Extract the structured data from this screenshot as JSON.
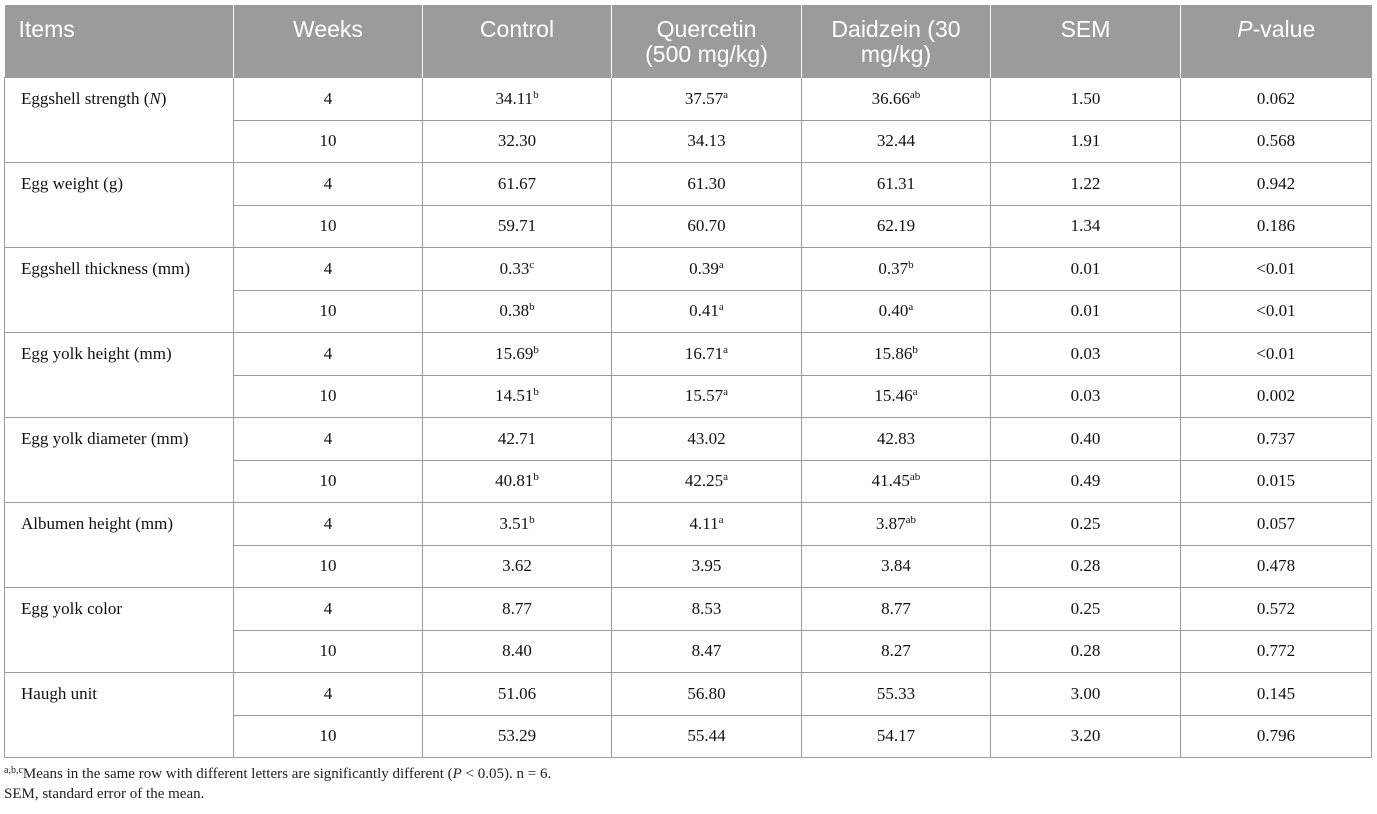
{
  "table": {
    "headers": {
      "items": "Items",
      "weeks": "Weeks",
      "control": "Control",
      "quercetin_line1": "Quercetin",
      "quercetin_line2": "(500 mg/kg)",
      "daidzein_line1": "Daidzein (30",
      "daidzein_line2": "mg/kg)",
      "sem": "SEM",
      "pvalue_italic": "P",
      "pvalue_rest": "-value"
    },
    "groups": [
      {
        "label": "Eggshell strength (",
        "label_italic": "N",
        "label_end": ")",
        "rows": [
          {
            "weeks": "4",
            "control": "34.11",
            "control_sup": "b",
            "quercetin": "37.57",
            "quercetin_sup": "a",
            "daidzein": "36.66",
            "daidzein_sup": "ab",
            "sem": "1.50",
            "p": "0.062"
          },
          {
            "weeks": "10",
            "control": "32.30",
            "control_sup": "",
            "quercetin": "34.13",
            "quercetin_sup": "",
            "daidzein": "32.44",
            "daidzein_sup": "",
            "sem": "1.91",
            "p": "0.568"
          }
        ]
      },
      {
        "label": "Egg weight (g)",
        "rows": [
          {
            "weeks": "4",
            "control": "61.67",
            "control_sup": "",
            "quercetin": "61.30",
            "quercetin_sup": "",
            "daidzein": "61.31",
            "daidzein_sup": "",
            "sem": "1.22",
            "p": "0.942"
          },
          {
            "weeks": "10",
            "control": "59.71",
            "control_sup": "",
            "quercetin": "60.70",
            "quercetin_sup": "",
            "daidzein": "62.19",
            "daidzein_sup": "",
            "sem": "1.34",
            "p": "0.186"
          }
        ]
      },
      {
        "label": "Eggshell thickness (mm)",
        "rows": [
          {
            "weeks": "4",
            "control": "0.33",
            "control_sup": "c",
            "quercetin": "0.39",
            "quercetin_sup": "a",
            "daidzein": "0.37",
            "daidzein_sup": "b",
            "sem": "0.01",
            "p": "<0.01"
          },
          {
            "weeks": "10",
            "control": "0.38",
            "control_sup": "b",
            "quercetin": "0.41",
            "quercetin_sup": "a",
            "daidzein": "0.40",
            "daidzein_sup": "a",
            "sem": "0.01",
            "p": "<0.01"
          }
        ]
      },
      {
        "label": "Egg yolk height (mm)",
        "rows": [
          {
            "weeks": "4",
            "control": "15.69",
            "control_sup": "b",
            "quercetin": "16.71",
            "quercetin_sup": "a",
            "daidzein": "15.86",
            "daidzein_sup": "b",
            "sem": "0.03",
            "p": "<0.01"
          },
          {
            "weeks": "10",
            "control": "14.51",
            "control_sup": "b",
            "quercetin": "15.57",
            "quercetin_sup": "a",
            "daidzein": "15.46",
            "daidzein_sup": "a",
            "sem": "0.03",
            "p": "0.002"
          }
        ]
      },
      {
        "label": "Egg yolk diameter (mm)",
        "rows": [
          {
            "weeks": "4",
            "control": "42.71",
            "control_sup": "",
            "quercetin": "43.02",
            "quercetin_sup": "",
            "daidzein": "42.83",
            "daidzein_sup": "",
            "sem": "0.40",
            "p": "0.737"
          },
          {
            "weeks": "10",
            "control": "40.81",
            "control_sup": "b",
            "quercetin": "42.25",
            "quercetin_sup": "a",
            "daidzein": "41.45",
            "daidzein_sup": "ab",
            "sem": "0.49",
            "p": "0.015"
          }
        ]
      },
      {
        "label": "Albumen height (mm)",
        "rows": [
          {
            "weeks": "4",
            "control": "3.51",
            "control_sup": "b",
            "quercetin": "4.11",
            "quercetin_sup": "a",
            "daidzein": "3.87",
            "daidzein_sup": "ab",
            "sem": "0.25",
            "p": "0.057"
          },
          {
            "weeks": "10",
            "control": "3.62",
            "control_sup": "",
            "quercetin": "3.95",
            "quercetin_sup": "",
            "daidzein": "3.84",
            "daidzein_sup": "",
            "sem": "0.28",
            "p": "0.478"
          }
        ]
      },
      {
        "label": "Egg yolk color",
        "rows": [
          {
            "weeks": "4",
            "control": "8.77",
            "control_sup": "",
            "quercetin": "8.53",
            "quercetin_sup": "",
            "daidzein": "8.77",
            "daidzein_sup": "",
            "sem": "0.25",
            "p": "0.572"
          },
          {
            "weeks": "10",
            "control": "8.40",
            "control_sup": "",
            "quercetin": "8.47",
            "quercetin_sup": "",
            "daidzein": "8.27",
            "daidzein_sup": "",
            "sem": "0.28",
            "p": "0.772"
          }
        ]
      },
      {
        "label": "Haugh unit",
        "rows": [
          {
            "weeks": "4",
            "control": "51.06",
            "control_sup": "",
            "quercetin": "56.80",
            "quercetin_sup": "",
            "daidzein": "55.33",
            "daidzein_sup": "",
            "sem": "3.00",
            "p": "0.145"
          },
          {
            "weeks": "10",
            "control": "53.29",
            "control_sup": "",
            "quercetin": "55.44",
            "quercetin_sup": "",
            "daidzein": "54.17",
            "daidzein_sup": "",
            "sem": "3.20",
            "p": "0.796"
          }
        ]
      }
    ]
  },
  "footnotes": {
    "sup": "a,b,c",
    "line1_a": "Means in the same row with different letters are significantly different (",
    "line1_italic": "P",
    "line1_b": " < 0.05). n = 6.",
    "line2": "SEM, standard error of the mean."
  }
}
